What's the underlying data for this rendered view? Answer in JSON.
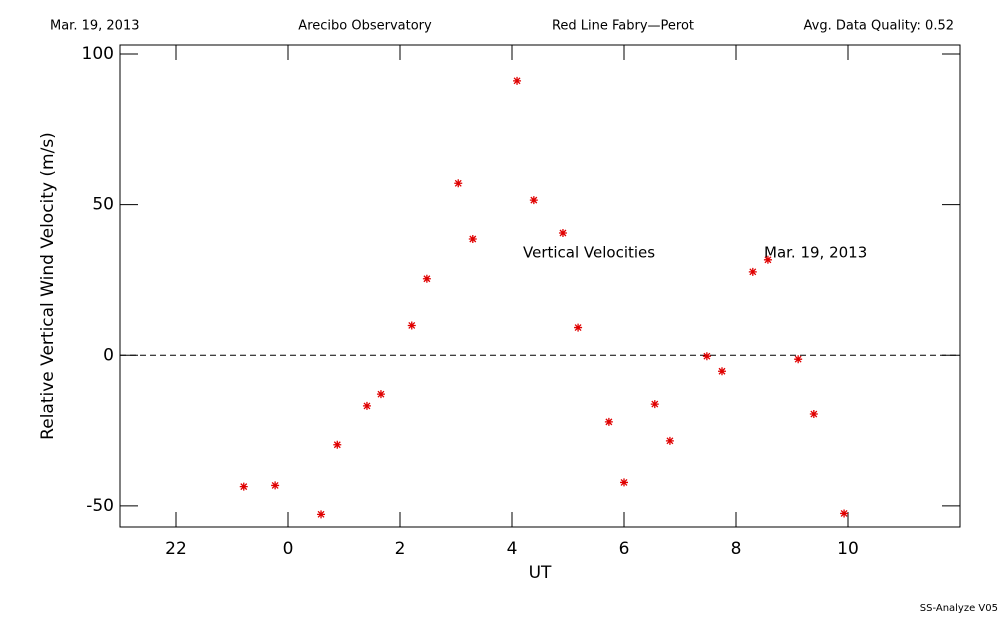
{
  "chart_data": {
    "type": "scatter",
    "header": [
      "Mar. 19, 2013",
      "Arecibo Observatory",
      "Red Line Fabry—Perot",
      "Avg. Data Quality: 0.52"
    ],
    "xlabel": "UT",
    "ylabel": "Relative Vertical Wind Velocity (m/s)",
    "annotations": [
      "Vertical Velocities",
      "Mar. 19, 2013"
    ],
    "footer": "SS-Analyze V05",
    "xlim": [
      21,
      36
    ],
    "ylim": [
      -57,
      103
    ],
    "xticks": [
      22,
      {
        "value": 24,
        "label": "0"
      },
      {
        "value": 26,
        "label": "2"
      },
      {
        "value": 28,
        "label": "4"
      },
      {
        "value": 30,
        "label": "6"
      },
      {
        "value": 32,
        "label": "8"
      },
      {
        "value": 34,
        "label": "10"
      }
    ],
    "yticks": [
      -50,
      0,
      50,
      100
    ],
    "reference_line": 0,
    "color": "#e00000",
    "x": [
      23.21,
      23.77,
      24.59,
      24.88,
      25.41,
      25.66,
      26.21,
      26.48,
      27.04,
      27.3,
      28.09,
      28.39,
      28.91,
      29.18,
      29.73,
      30.0,
      30.55,
      30.82,
      31.48,
      31.75,
      32.3,
      32.57,
      33.11,
      33.39,
      33.93
    ],
    "values": [
      -43.6,
      -43.2,
      -52.8,
      -29.7,
      -16.8,
      -12.9,
      9.9,
      25.4,
      57.1,
      38.6,
      91.1,
      51.5,
      40.6,
      9.2,
      -22.1,
      -42.2,
      -16.2,
      -28.4,
      -0.3,
      -5.3,
      27.7,
      31.7,
      -1.3,
      -19.5,
      -52.5
    ]
  }
}
